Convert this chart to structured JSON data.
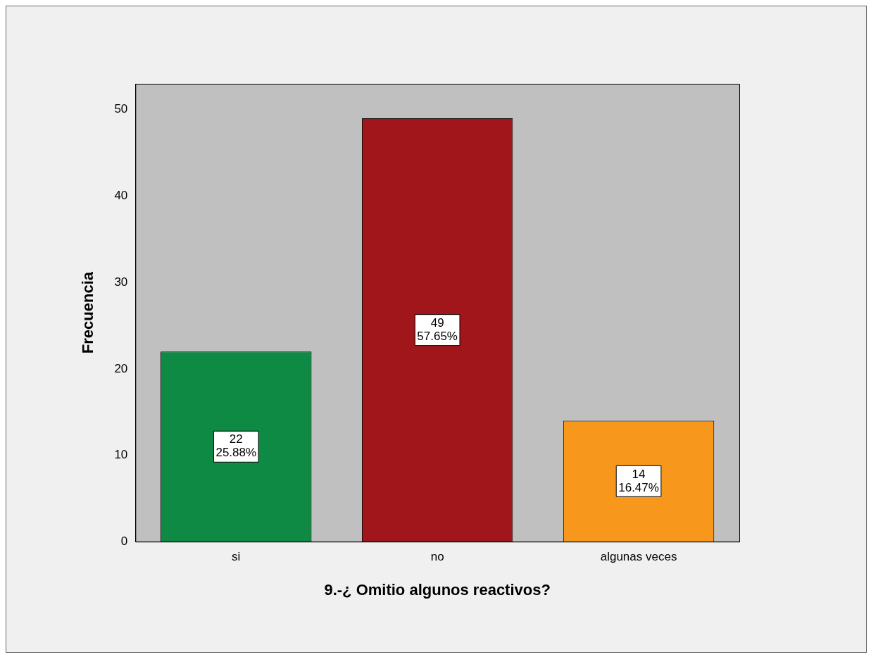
{
  "chart_data": {
    "type": "bar",
    "xlabel": "9.-¿ Omitio algunos reactivos?",
    "ylabel": "Frecuencia",
    "categories": [
      "si",
      "no",
      "algunas veces"
    ],
    "values": [
      22,
      49,
      14
    ],
    "colors": [
      "#0e8a45",
      "#a0161a",
      "#f7981d"
    ],
    "value_labels": [
      "22\n25.88%",
      "49\n57.65%",
      "14\n16.47%"
    ],
    "ylim": [
      0,
      53
    ],
    "yticks": [
      0,
      10,
      20,
      30,
      40,
      50
    ],
    "grid": false,
    "legend": false
  }
}
